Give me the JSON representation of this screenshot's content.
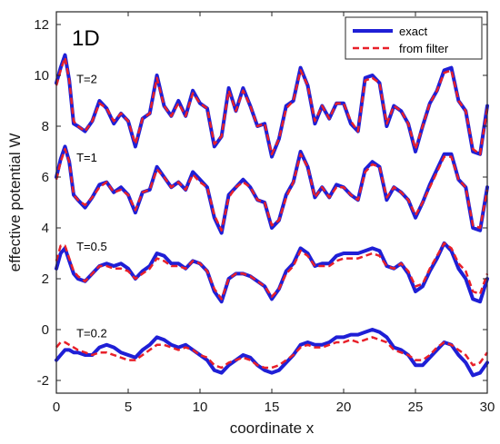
{
  "chart_data": {
    "type": "line",
    "panel_tag": "1D",
    "xlabel": "coordinate x",
    "ylabel": "effective potential W",
    "xlim": [
      0,
      30
    ],
    "ylim": [
      -2.5,
      12.5
    ],
    "xticks": [
      0,
      5,
      10,
      15,
      20,
      25,
      30
    ],
    "yticks": [
      -2,
      0,
      2,
      4,
      6,
      8,
      10,
      12
    ],
    "grid": false,
    "legend_position": "top-right",
    "colors": {
      "exact": "#1f1fd6",
      "filter": "#e8202a"
    },
    "series": [
      {
        "name": "exact",
        "style": "solid",
        "color": "#1f1fd6"
      },
      {
        "name": "from filter",
        "style": "dashed",
        "color": "#e8202a"
      }
    ],
    "annotations": [
      {
        "text": "T=2",
        "x": 1.4,
        "y": 9.7
      },
      {
        "text": "T=1",
        "x": 1.4,
        "y": 6.6
      },
      {
        "text": "T=0.5",
        "x": 1.4,
        "y": 3.1
      },
      {
        "text": "T=0.2",
        "x": 1.4,
        "y": -0.3
      }
    ],
    "curves": [
      {
        "label": "T=2",
        "x": [
          0,
          0.3,
          0.6,
          0.9,
          1.2,
          1.5,
          2,
          2.5,
          3,
          3.5,
          4,
          4.5,
          5,
          5.5,
          6,
          6.5,
          7,
          7.5,
          8,
          8.5,
          9,
          9.5,
          10,
          10.5,
          11,
          11.5,
          12,
          12.5,
          13,
          13.5,
          14,
          14.5,
          15,
          15.5,
          16,
          16.5,
          17,
          17.5,
          18,
          18.5,
          19,
          19.5,
          20,
          20.5,
          21,
          21.5,
          22,
          22.5,
          23,
          23.5,
          24,
          24.5,
          25,
          25.5,
          26,
          26.5,
          27,
          27.5,
          28,
          28.5,
          29,
          29.5,
          30
        ],
        "exact": [
          9.7,
          10.3,
          10.8,
          9.8,
          8.1,
          8.0,
          7.8,
          8.2,
          9.0,
          8.7,
          8.1,
          8.5,
          8.2,
          7.2,
          8.3,
          8.5,
          10.0,
          8.8,
          8.4,
          9.0,
          8.4,
          9.4,
          8.9,
          8.7,
          7.2,
          7.6,
          9.5,
          8.6,
          9.5,
          8.8,
          8.0,
          8.1,
          6.8,
          7.5,
          8.8,
          9.0,
          10.3,
          9.6,
          8.1,
          8.8,
          8.3,
          8.9,
          8.9,
          8.1,
          7.8,
          9.9,
          10.0,
          9.7,
          8.0,
          8.8,
          8.6,
          8.1,
          7.0,
          8.0,
          8.9,
          9.4,
          10.2,
          10.3,
          9.0,
          8.6,
          7.0,
          6.9,
          8.8
        ],
        "filter": [
          9.6,
          10.2,
          10.7,
          9.8,
          8.2,
          8.0,
          7.8,
          8.2,
          8.9,
          8.7,
          8.2,
          8.5,
          8.2,
          7.3,
          8.3,
          8.5,
          9.9,
          8.8,
          8.4,
          8.9,
          8.4,
          9.3,
          8.9,
          8.7,
          7.3,
          7.6,
          9.4,
          8.6,
          9.4,
          8.8,
          8.0,
          8.1,
          6.9,
          7.5,
          8.7,
          9.0,
          10.2,
          9.6,
          8.2,
          8.8,
          8.3,
          8.9,
          8.9,
          8.2,
          7.8,
          9.8,
          9.9,
          9.7,
          8.1,
          8.8,
          8.6,
          8.1,
          7.1,
          8.0,
          8.9,
          9.4,
          10.1,
          10.2,
          9.0,
          8.6,
          7.1,
          6.9,
          8.7
        ]
      },
      {
        "label": "T=1",
        "x": [
          0,
          0.3,
          0.6,
          0.9,
          1.2,
          1.5,
          2,
          2.5,
          3,
          3.5,
          4,
          4.5,
          5,
          5.5,
          6,
          6.5,
          7,
          7.5,
          8,
          8.5,
          9,
          9.5,
          10,
          10.5,
          11,
          11.5,
          12,
          12.5,
          13,
          13.5,
          14,
          14.5,
          15,
          15.5,
          16,
          16.5,
          17,
          17.5,
          18,
          18.5,
          19,
          19.5,
          20,
          20.5,
          21,
          21.5,
          22,
          22.5,
          23,
          23.5,
          24,
          24.5,
          25,
          25.5,
          26,
          26.5,
          27,
          27.5,
          28,
          28.5,
          29,
          29.5,
          30
        ],
        "exact": [
          6.0,
          6.7,
          7.2,
          6.6,
          5.3,
          5.1,
          4.8,
          5.2,
          5.7,
          5.8,
          5.4,
          5.6,
          5.3,
          4.6,
          5.4,
          5.5,
          6.4,
          6.0,
          5.6,
          5.8,
          5.5,
          6.2,
          5.9,
          5.6,
          4.4,
          3.8,
          5.3,
          5.6,
          5.9,
          5.6,
          5.1,
          5.0,
          4.0,
          4.3,
          5.3,
          5.8,
          7.0,
          6.4,
          5.2,
          5.6,
          5.2,
          5.7,
          5.6,
          5.3,
          5.1,
          6.3,
          6.6,
          6.4,
          5.1,
          5.6,
          5.4,
          5.1,
          4.4,
          5.0,
          5.7,
          6.3,
          6.9,
          6.9,
          5.9,
          5.6,
          4.0,
          3.9,
          5.6
        ],
        "filter": [
          5.9,
          6.6,
          7.1,
          6.6,
          5.3,
          5.1,
          4.9,
          5.2,
          5.6,
          5.8,
          5.4,
          5.5,
          5.3,
          4.7,
          5.4,
          5.5,
          6.3,
          6.0,
          5.6,
          5.8,
          5.5,
          6.1,
          5.8,
          5.6,
          4.5,
          3.9,
          5.2,
          5.6,
          5.8,
          5.6,
          5.1,
          5.0,
          4.1,
          4.3,
          5.2,
          5.8,
          6.9,
          6.4,
          5.2,
          5.6,
          5.2,
          5.6,
          5.6,
          5.3,
          5.1,
          6.2,
          6.5,
          6.4,
          5.2,
          5.6,
          5.4,
          5.1,
          4.5,
          5.0,
          5.6,
          6.2,
          6.8,
          6.8,
          5.9,
          5.6,
          4.1,
          4.0,
          5.5
        ]
      },
      {
        "label": "T=0.5",
        "x": [
          0,
          0.3,
          0.6,
          0.9,
          1.2,
          1.5,
          2,
          2.5,
          3,
          3.5,
          4,
          4.5,
          5,
          5.5,
          6,
          6.5,
          7,
          7.5,
          8,
          8.5,
          9,
          9.5,
          10,
          10.5,
          11,
          11.5,
          12,
          12.5,
          13,
          13.5,
          14,
          14.5,
          15,
          15.5,
          16,
          16.5,
          17,
          17.5,
          18,
          18.5,
          19,
          19.5,
          20,
          20.5,
          21,
          21.5,
          22,
          22.5,
          23,
          23.5,
          24,
          24.5,
          25,
          25.5,
          26,
          26.5,
          27,
          27.5,
          28,
          28.5,
          29,
          29.5,
          30
        ],
        "exact": [
          2.4,
          3.0,
          3.2,
          2.7,
          2.2,
          2.0,
          1.9,
          2.2,
          2.5,
          2.6,
          2.5,
          2.6,
          2.4,
          2.0,
          2.3,
          2.5,
          3.0,
          2.9,
          2.6,
          2.6,
          2.4,
          2.7,
          2.6,
          2.3,
          1.5,
          1.1,
          2.0,
          2.2,
          2.2,
          2.1,
          1.9,
          1.7,
          1.2,
          1.6,
          2.3,
          2.6,
          3.2,
          3.0,
          2.5,
          2.6,
          2.6,
          2.9,
          3.0,
          3.0,
          3.0,
          3.1,
          3.2,
          3.1,
          2.5,
          2.4,
          2.6,
          2.2,
          1.5,
          1.7,
          2.3,
          2.8,
          3.4,
          3.1,
          2.4,
          2.0,
          1.2,
          1.1,
          2.0
        ],
        "filter": [
          2.7,
          3.3,
          3.3,
          2.8,
          2.3,
          2.1,
          1.9,
          2.2,
          2.5,
          2.5,
          2.4,
          2.4,
          2.3,
          2.0,
          2.2,
          2.4,
          2.8,
          2.7,
          2.5,
          2.5,
          2.4,
          2.7,
          2.6,
          2.3,
          1.6,
          1.2,
          2.0,
          2.2,
          2.2,
          2.1,
          1.9,
          1.7,
          1.3,
          1.6,
          2.2,
          2.5,
          3.1,
          2.9,
          2.5,
          2.5,
          2.5,
          2.7,
          2.8,
          2.8,
          2.8,
          2.9,
          3.0,
          2.9,
          2.5,
          2.4,
          2.6,
          2.3,
          1.7,
          1.8,
          2.4,
          2.9,
          3.4,
          3.2,
          2.6,
          2.3,
          1.5,
          1.4,
          2.2
        ]
      },
      {
        "label": "T=0.2",
        "x": [
          0,
          0.3,
          0.6,
          0.9,
          1.2,
          1.5,
          2,
          2.5,
          3,
          3.5,
          4,
          4.5,
          5,
          5.5,
          6,
          6.5,
          7,
          7.5,
          8,
          8.5,
          9,
          9.5,
          10,
          10.5,
          11,
          11.5,
          12,
          12.5,
          13,
          13.5,
          14,
          14.5,
          15,
          15.5,
          16,
          16.5,
          17,
          17.5,
          18,
          18.5,
          19,
          19.5,
          20,
          20.5,
          21,
          21.5,
          22,
          22.5,
          23,
          23.5,
          24,
          24.5,
          25,
          25.5,
          26,
          26.5,
          27,
          27.5,
          28,
          28.5,
          29,
          29.5,
          30
        ],
        "exact": [
          -1.2,
          -1.0,
          -0.8,
          -0.8,
          -0.9,
          -0.9,
          -1.0,
          -1.0,
          -0.7,
          -0.6,
          -0.7,
          -0.9,
          -1.0,
          -1.1,
          -0.8,
          -0.6,
          -0.3,
          -0.4,
          -0.6,
          -0.7,
          -0.6,
          -0.8,
          -1.0,
          -1.2,
          -1.6,
          -1.7,
          -1.4,
          -1.2,
          -1.0,
          -1.1,
          -1.4,
          -1.6,
          -1.7,
          -1.6,
          -1.3,
          -1.0,
          -0.6,
          -0.5,
          -0.6,
          -0.6,
          -0.5,
          -0.3,
          -0.3,
          -0.2,
          -0.2,
          -0.1,
          0.0,
          -0.1,
          -0.3,
          -0.7,
          -0.8,
          -1.0,
          -1.4,
          -1.4,
          -1.1,
          -0.8,
          -0.5,
          -0.6,
          -1.0,
          -1.3,
          -1.8,
          -1.7,
          -1.3
        ],
        "filter": [
          -0.7,
          -0.5,
          -0.5,
          -0.6,
          -0.7,
          -0.8,
          -0.9,
          -1.0,
          -0.9,
          -0.9,
          -1.0,
          -1.1,
          -1.2,
          -1.2,
          -1.0,
          -0.8,
          -0.6,
          -0.6,
          -0.7,
          -0.8,
          -0.7,
          -0.8,
          -1.0,
          -1.1,
          -1.4,
          -1.5,
          -1.3,
          -1.2,
          -1.1,
          -1.2,
          -1.4,
          -1.5,
          -1.5,
          -1.4,
          -1.2,
          -1.0,
          -0.7,
          -0.6,
          -0.7,
          -0.7,
          -0.6,
          -0.5,
          -0.5,
          -0.4,
          -0.5,
          -0.4,
          -0.3,
          -0.4,
          -0.5,
          -0.8,
          -0.9,
          -1.0,
          -1.2,
          -1.2,
          -1.0,
          -0.7,
          -0.5,
          -0.6,
          -0.8,
          -1.0,
          -1.4,
          -1.3,
          -0.9
        ]
      }
    ]
  }
}
